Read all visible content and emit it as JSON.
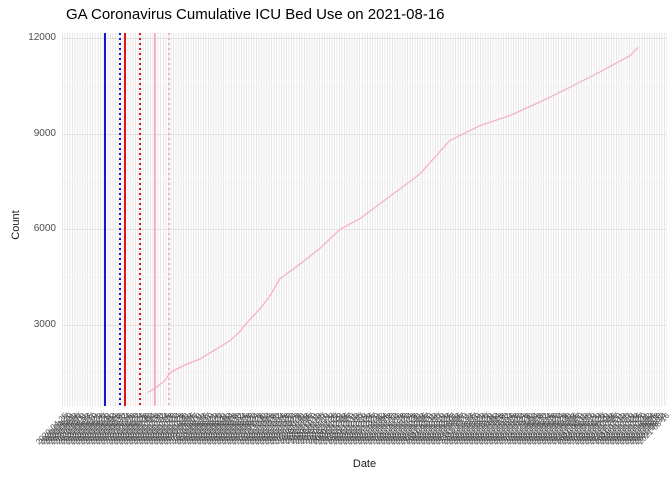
{
  "chart": {
    "title": "GA Coronavirus Cumulative ICU Bed Use on 2021-08-16",
    "x_label": "Date",
    "y_label": "Count"
  },
  "chart_data": {
    "type": "line",
    "title": "GA Coronavirus Cumulative ICU Bed Use on 2021-08-16",
    "xlabel": "Date",
    "ylabel": "Count",
    "grid": true,
    "legend": "none",
    "ylim": [
      442,
      12170
    ],
    "y_major_ticks": [
      3000,
      6000,
      9000,
      12000
    ],
    "y_minor_ticks": [
      1500,
      4500,
      7500,
      10500
    ],
    "x_axis": {
      "tick_start_date": "2020-04-25",
      "tick_step_days": 2,
      "tick_count": 240,
      "last_tick_date": "2021-08-16",
      "label_format": "YYYY-MM-DD",
      "label_angle_deg": 45,
      "note": "rotated date tick labels overlap into an illegible band; dates estimated"
    },
    "series": [
      {
        "name": "cumulative-icu-bed-use",
        "color": "#f7b1c4",
        "points_note": "f = fraction across panel width, v = Count value read from axis",
        "points": [
          {
            "f": 0.142,
            "v": 870
          },
          {
            "f": 0.154,
            "v": 1000
          },
          {
            "f": 0.17,
            "v": 1240
          },
          {
            "f": 0.179,
            "v": 1500
          },
          {
            "f": 0.203,
            "v": 1730
          },
          {
            "f": 0.228,
            "v": 1920
          },
          {
            "f": 0.258,
            "v": 2270
          },
          {
            "f": 0.278,
            "v": 2500
          },
          {
            "f": 0.294,
            "v": 2780
          },
          {
            "f": 0.303,
            "v": 3000
          },
          {
            "f": 0.327,
            "v": 3490
          },
          {
            "f": 0.344,
            "v": 3910
          },
          {
            "f": 0.36,
            "v": 4440
          },
          {
            "f": 0.393,
            "v": 4900
          },
          {
            "f": 0.426,
            "v": 5390
          },
          {
            "f": 0.46,
            "v": 6000
          },
          {
            "f": 0.493,
            "v": 6340
          },
          {
            "f": 0.526,
            "v": 6810
          },
          {
            "f": 0.577,
            "v": 7530
          },
          {
            "f": 0.592,
            "v": 7750
          },
          {
            "f": 0.641,
            "v": 8790
          },
          {
            "f": 0.691,
            "v": 9260
          },
          {
            "f": 0.741,
            "v": 9580
          },
          {
            "f": 0.79,
            "v": 10000
          },
          {
            "f": 0.84,
            "v": 10470
          },
          {
            "f": 0.889,
            "v": 10940
          },
          {
            "f": 0.939,
            "v": 11460
          },
          {
            "f": 0.952,
            "v": 11720
          }
        ]
      }
    ],
    "vlines": [
      {
        "name": "event-line-blue-solid",
        "color": "#1515d8",
        "style": "solid",
        "f": 0.07
      },
      {
        "name": "event-line-blue-dotted",
        "color": "#1515d8",
        "style": "dotted",
        "f": 0.094
      },
      {
        "name": "event-line-red-solid",
        "color": "#e01515",
        "style": "solid",
        "f": 0.102
      },
      {
        "name": "event-line-red-dotted",
        "color": "#e01515",
        "style": "dotted",
        "f": 0.128
      },
      {
        "name": "event-line-pink-solid",
        "color": "#f7b1c4",
        "style": "solid",
        "f": 0.152
      },
      {
        "name": "event-line-pink-dotted",
        "color": "#f7b1c4",
        "style": "dotted",
        "f": 0.175
      }
    ],
    "colors": {
      "background": "#ffffff",
      "grid_major": "#e2e2e2",
      "grid_minor": "#f0f0f0",
      "grid_vertical": "#e7e7e7",
      "tick_label": "#4d4d4d",
      "axis_title": "#1a1a1a",
      "title": "#000000"
    }
  }
}
